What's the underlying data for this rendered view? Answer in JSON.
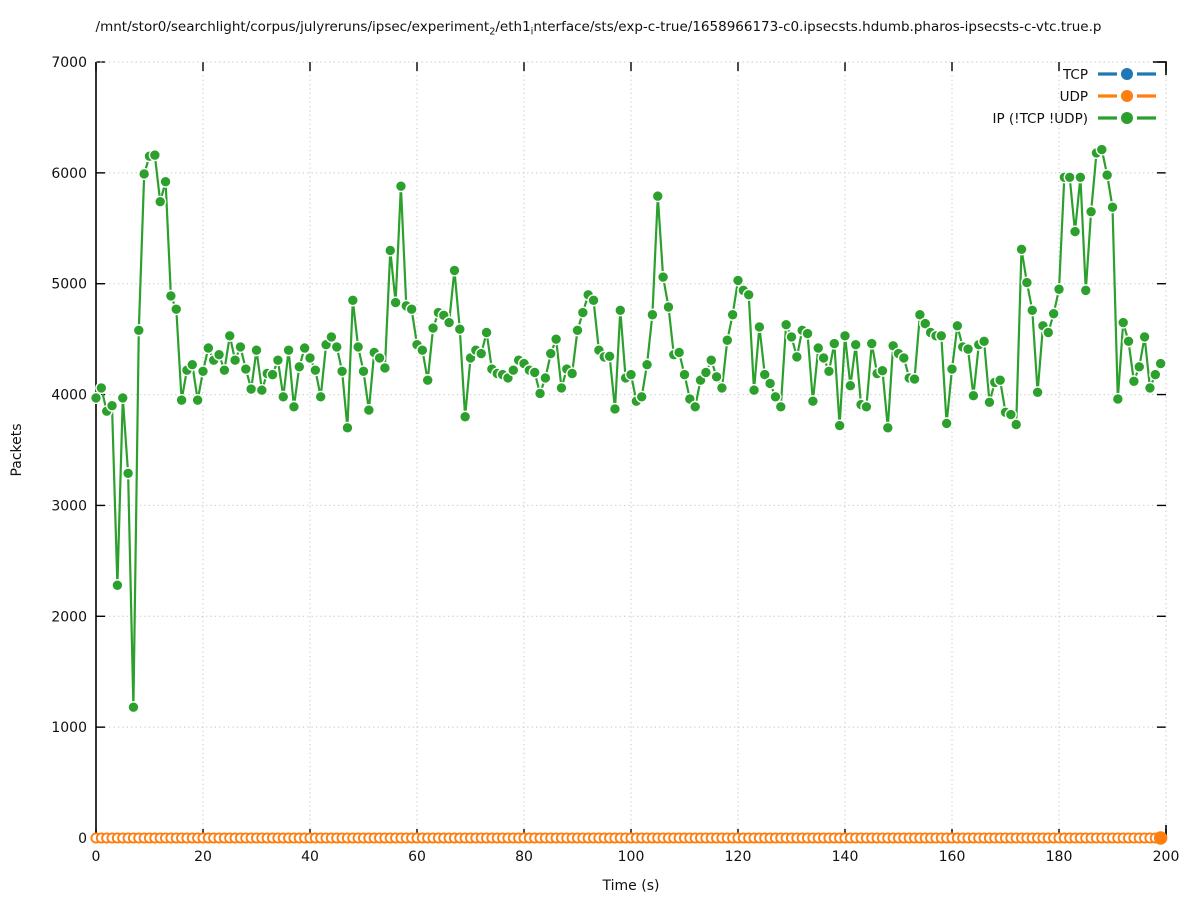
{
  "title_segments": [
    {
      "text": "/mnt/stor0/searchlight/corpus/julyreruns/ipsec/experiment",
      "sub": false
    },
    {
      "text": "2",
      "sub": true
    },
    {
      "text": "/eth1",
      "sub": false
    },
    {
      "text": "i",
      "sub": true
    },
    {
      "text": "nterface/sts/exp-c-true/1658966173-c0.ipsecsts.hdumb.pharos-ipsecsts-c-vtc.true.p",
      "sub": false
    }
  ],
  "chart_data": {
    "type": "line",
    "xlabel": "Time (s)",
    "ylabel": "Packets",
    "xlim": [
      0,
      200
    ],
    "ylim": [
      0,
      7000
    ],
    "xticks": [
      0,
      20,
      40,
      60,
      80,
      100,
      120,
      140,
      160,
      180,
      200
    ],
    "yticks": [
      0,
      1000,
      2000,
      3000,
      4000,
      5000,
      6000,
      7000
    ],
    "grid": "dotted",
    "legend_position": "top-right",
    "legend": [
      {
        "label": "TCP",
        "color": "#1f77b4"
      },
      {
        "label": "UDP",
        "color": "#ff7f0e"
      },
      {
        "label": "IP (!TCP  !UDP)",
        "color": "#2ca02c"
      }
    ],
    "series": [
      {
        "name": "TCP",
        "color": "#1f77b4",
        "marker": "filled-circle",
        "x_start": 0,
        "x_step": 1,
        "n_points": 200,
        "constant_value": 0,
        "note": "flat at 0, hidden beneath UDP markers"
      },
      {
        "name": "UDP",
        "color": "#ff7f0e",
        "marker": "open-circle",
        "x_start": 0,
        "x_step": 1,
        "n_points": 200,
        "constant_value": 0,
        "last_point_filled": true
      },
      {
        "name": "IP (!TCP  !UDP)",
        "color": "#2ca02c",
        "marker": "filled-circle",
        "x_start": 0,
        "x_step": 1,
        "values": [
          3970,
          4060,
          3850,
          3900,
          2280,
          3970,
          3290,
          1180,
          4580,
          5990,
          6150,
          6160,
          5740,
          5920,
          4890,
          4770,
          3950,
          4220,
          4270,
          3950,
          4210,
          4420,
          4310,
          4360,
          4220,
          4530,
          4310,
          4430,
          4230,
          4050,
          4400,
          4040,
          4190,
          4180,
          4310,
          3980,
          4400,
          3890,
          4250,
          4420,
          4330,
          4220,
          3980,
          4450,
          4520,
          4430,
          4210,
          3700,
          4850,
          4430,
          4210,
          3860,
          4380,
          4330,
          4240,
          5300,
          4830,
          5880,
          4800,
          4770,
          4450,
          4400,
          4130,
          4600,
          4740,
          4715,
          4650,
          5120,
          4590,
          3800,
          4330,
          4400,
          4370,
          4560,
          4230,
          4190,
          4180,
          4150,
          4220,
          4310,
          4280,
          4220,
          4200,
          4010,
          4150,
          4370,
          4500,
          4060,
          4230,
          4190,
          4580,
          4740,
          4900,
          4850,
          4400,
          4340,
          4345,
          3870,
          4760,
          4150,
          4180,
          3940,
          3980,
          4270,
          4720,
          5790,
          5060,
          4790,
          4360,
          4380,
          4180,
          3960,
          3890,
          4130,
          4200,
          4310,
          4160,
          4060,
          4490,
          4720,
          5030,
          4940,
          4900,
          4040,
          4610,
          4180,
          4100,
          3980,
          3890,
          4630,
          4520,
          4340,
          4580,
          4550,
          3940,
          4420,
          4330,
          4210,
          4460,
          3720,
          4530,
          4080,
          4450,
          3910,
          3890,
          4460,
          4190,
          4215,
          3700,
          4440,
          4370,
          4330,
          4150,
          4140,
          4720,
          4640,
          4560,
          4530,
          4530,
          3740,
          4230,
          4620,
          4430,
          4410,
          3990,
          4450,
          4480,
          3930,
          4110,
          4130,
          3840,
          3820,
          3730,
          5310,
          5010,
          4760,
          4020,
          4620,
          4560,
          4730,
          4950,
          5960,
          5960,
          5470,
          5960,
          4940,
          5650,
          6180,
          6210,
          5980,
          5690,
          3960,
          4650,
          4480,
          4120,
          4250,
          4520,
          4060,
          4180,
          4280
        ]
      }
    ]
  },
  "colors": {
    "axis": "#000000",
    "grid": "#c4c4c4",
    "text": "#111111",
    "marker_halo": "#ffffff"
  }
}
